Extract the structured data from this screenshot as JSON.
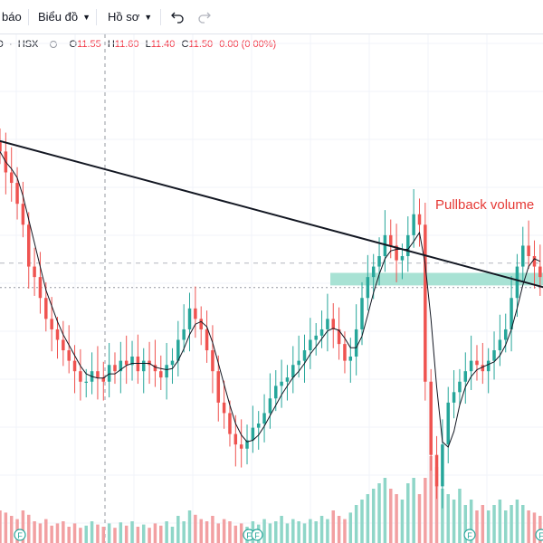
{
  "toolbar": {
    "alerts_label": "báo",
    "indicators_label": "Biểu đồ",
    "templates_label": "Hồ sơ",
    "undo_icon": "undo-icon",
    "redo_icon": "redo-icon",
    "chevron_icon": "chevron-down-icon"
  },
  "legend": {
    "symbol_fragment": "D",
    "separator": "·",
    "exchange": "HSX",
    "open_label": "O",
    "open_value": "11.55",
    "high_label": "H",
    "high_value": "11.60",
    "low_label": "L",
    "low_value": "11.40",
    "close_label": "C",
    "close_value": "11.50",
    "change": "0.00 (0.00%)",
    "value_color": "#f23645"
  },
  "annotation": {
    "text": "Pullback volume",
    "color": "#e53935"
  },
  "dividend_markers": [
    "F",
    "F",
    "F",
    "F",
    "F"
  ],
  "colors": {
    "up": "#26a69a",
    "down": "#ef5350",
    "up_volume": "#8fd6c8",
    "down_volume": "#f2a0a2",
    "ma_line": "#131722",
    "trendline": "#131722",
    "zone": "#9fdfcf"
  },
  "chart_data": {
    "type": "candlestick",
    "title": "",
    "xlabel": "",
    "ylabel": "",
    "ylim": [
      11.0,
      12.6
    ],
    "close_series": [
      12.3,
      12.2,
      12.15,
      12.05,
      11.95,
      11.75,
      11.7,
      11.6,
      11.5,
      11.45,
      11.4,
      11.35,
      11.3,
      11.25,
      11.2,
      11.2,
      11.25,
      11.22,
      11.2,
      11.28,
      11.25,
      11.3,
      11.28,
      11.32,
      11.25,
      11.3,
      11.28,
      11.25,
      11.22,
      11.28,
      11.3,
      11.4,
      11.45,
      11.55,
      11.5,
      11.45,
      11.35,
      11.25,
      11.1,
      11.05,
      10.95,
      10.9,
      10.88,
      10.92,
      10.98,
      11.0,
      11.05,
      11.12,
      11.18,
      11.2,
      11.22,
      11.28,
      11.3,
      11.35,
      11.4,
      11.42,
      11.45,
      11.5,
      11.45,
      11.38,
      11.3,
      11.32,
      11.45,
      11.6,
      11.7,
      11.75,
      11.8,
      11.9,
      11.85,
      11.78,
      11.8,
      11.9,
      12.0,
      11.95,
      11.2,
      10.85,
      10.7,
      10.9,
      11.1,
      11.15,
      11.2,
      11.25,
      11.3,
      11.28,
      11.25,
      11.3,
      11.35,
      11.4,
      11.45,
      11.6,
      11.75,
      11.85,
      11.8,
      11.75,
      11.7
    ],
    "volume_series": [
      0.3,
      0.28,
      0.25,
      0.22,
      0.3,
      0.26,
      0.2,
      0.18,
      0.22,
      0.16,
      0.18,
      0.2,
      0.15,
      0.18,
      0.14,
      0.16,
      0.2,
      0.17,
      0.15,
      0.18,
      0.14,
      0.19,
      0.16,
      0.2,
      0.15,
      0.17,
      0.14,
      0.18,
      0.16,
      0.2,
      0.15,
      0.25,
      0.2,
      0.3,
      0.26,
      0.22,
      0.2,
      0.25,
      0.18,
      0.22,
      0.2,
      0.16,
      0.18,
      0.15,
      0.2,
      0.17,
      0.22,
      0.18,
      0.2,
      0.25,
      0.18,
      0.22,
      0.2,
      0.18,
      0.22,
      0.2,
      0.25,
      0.22,
      0.3,
      0.25,
      0.22,
      0.28,
      0.35,
      0.4,
      0.45,
      0.5,
      0.55,
      0.6,
      0.5,
      0.45,
      0.4,
      0.55,
      0.6,
      0.45,
      0.6,
      0.8,
      0.7,
      0.5,
      0.45,
      0.4,
      0.5,
      0.35,
      0.4,
      0.3,
      0.35,
      0.3,
      0.35,
      0.4,
      0.3,
      0.35,
      0.4,
      0.35,
      0.3,
      0.28,
      0.25
    ],
    "resistance_zone": [
      11.66,
      11.72
    ],
    "reference_level": 11.65,
    "trendline": [
      [
        0,
        12.35
      ],
      [
        93,
        11.68
      ]
    ],
    "grid": true
  }
}
